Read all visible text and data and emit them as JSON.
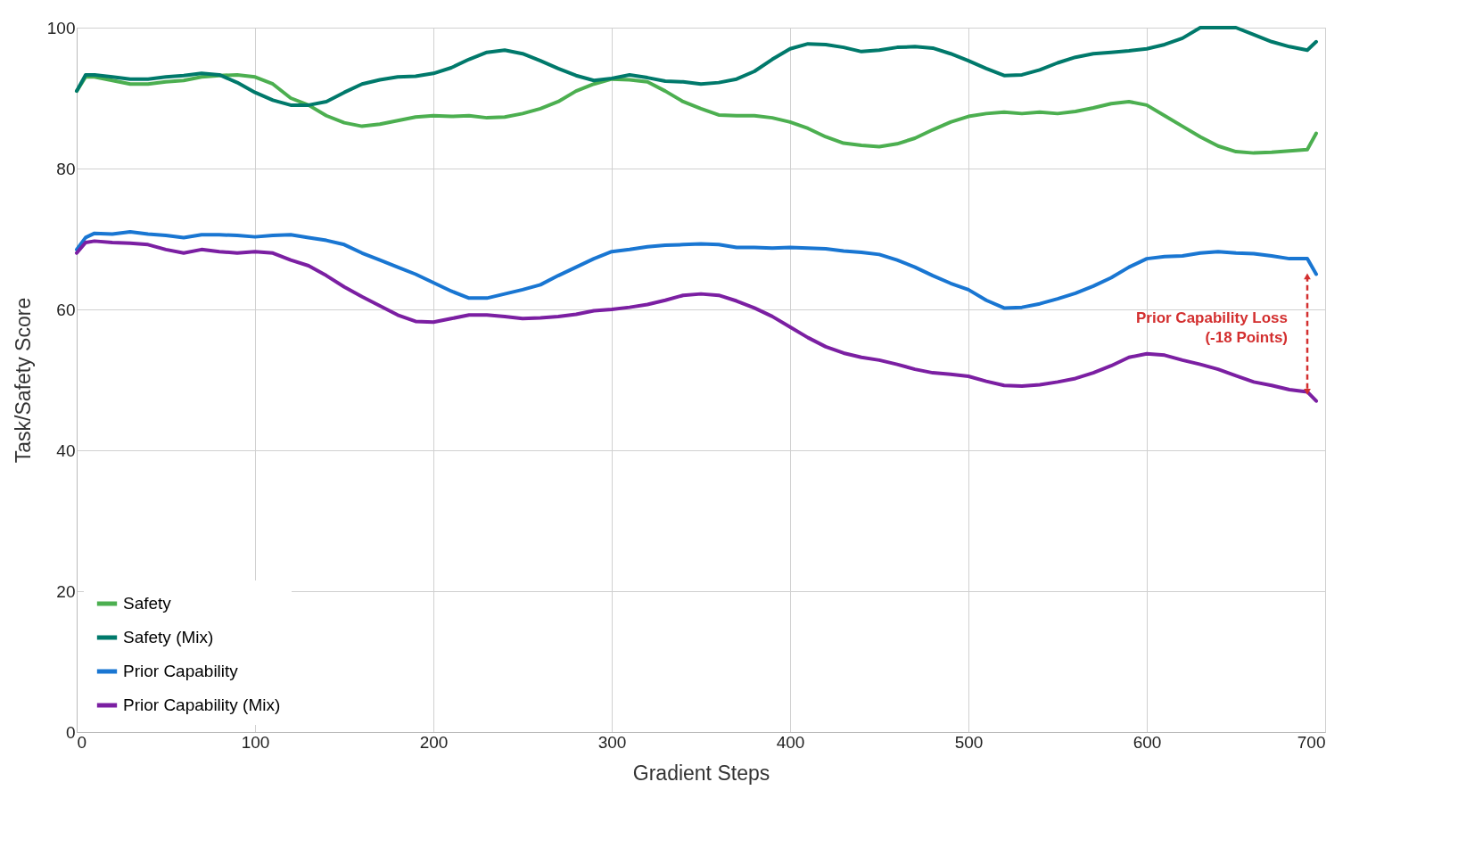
{
  "chart_data": {
    "type": "line",
    "xlabel": "Gradient Steps",
    "ylabel": "Task/Safety Score",
    "x": [
      0,
      5,
      10,
      20,
      30,
      40,
      50,
      60,
      70,
      80,
      90,
      100,
      110,
      120,
      130,
      140,
      150,
      160,
      170,
      180,
      190,
      200,
      210,
      220,
      230,
      240,
      250,
      260,
      270,
      280,
      290,
      300,
      310,
      320,
      330,
      340,
      350,
      360,
      370,
      380,
      390,
      400,
      410,
      420,
      430,
      440,
      450,
      460,
      470,
      480,
      490,
      500,
      510,
      520,
      530,
      540,
      550,
      560,
      570,
      580,
      590,
      600,
      610,
      620,
      630,
      640,
      650,
      660,
      670,
      680,
      690,
      695
    ],
    "series": [
      {
        "name": "Safety",
        "color": "#4caf50",
        "values": [
          91,
          93,
          93,
          92.5,
          92,
          92,
          92.3,
          92.5,
          93,
          93.2,
          93.3,
          93,
          92,
          90,
          89,
          87.5,
          86.5,
          86,
          86.3,
          86.8,
          87.3,
          87.5,
          87.4,
          87.5,
          87.2,
          87.3,
          87.8,
          88.5,
          89.5,
          91,
          92,
          92.7,
          92.6,
          92.3,
          91,
          89.5,
          88.5,
          87.6,
          87.5,
          87.5,
          87.2,
          86.6,
          85.7,
          84.5,
          83.6,
          83.3,
          83.1,
          83.5,
          84.3,
          85.5,
          86.6,
          87.4,
          87.8,
          88,
          87.8,
          88,
          87.8,
          88.1,
          88.6,
          89.2,
          89.5,
          89,
          87.5,
          86,
          84.5,
          83.2,
          82.4,
          82.2,
          82.3,
          82.5,
          82.7,
          85
        ]
      },
      {
        "name": "Safety (Mix)",
        "color": "#00796b",
        "values": [
          91,
          93.3,
          93.3,
          93,
          92.7,
          92.7,
          93,
          93.2,
          93.5,
          93.3,
          92.2,
          90.8,
          89.7,
          89,
          89,
          89.5,
          90.8,
          92,
          92.6,
          93,
          93.1,
          93.5,
          94.3,
          95.5,
          96.5,
          96.8,
          96.3,
          95.3,
          94.2,
          93.2,
          92.5,
          92.8,
          93.3,
          92.9,
          92.4,
          92.3,
          92,
          92.2,
          92.7,
          93.8,
          95.5,
          97,
          97.7,
          97.6,
          97.2,
          96.6,
          96.8,
          97.2,
          97.3,
          97.1,
          96.3,
          95.3,
          94.2,
          93.2,
          93.3,
          94,
          95,
          95.8,
          96.3,
          96.5,
          96.7,
          97,
          97.6,
          98.5,
          100,
          100,
          100,
          99,
          98,
          97.3,
          96.8,
          98
        ]
      },
      {
        "name": "Prior Capability",
        "color": "#1976d2",
        "values": [
          68.5,
          70.2,
          70.8,
          70.7,
          71,
          70.7,
          70.5,
          70.2,
          70.6,
          70.6,
          70.5,
          70.3,
          70.5,
          70.6,
          70.2,
          69.8,
          69.2,
          68,
          67,
          66,
          65,
          63.8,
          62.6,
          61.6,
          61.6,
          62.2,
          62.8,
          63.5,
          64.8,
          66,
          67.2,
          68.2,
          68.5,
          68.9,
          69.1,
          69.2,
          69.3,
          69.2,
          68.8,
          68.8,
          68.7,
          68.8,
          68.7,
          68.6,
          68.3,
          68.1,
          67.8,
          67,
          66,
          64.8,
          63.7,
          62.8,
          61.3,
          60.2,
          60.3,
          60.8,
          61.5,
          62.3,
          63.3,
          64.5,
          66,
          67.2,
          67.5,
          67.6,
          68,
          68.2,
          68,
          67.9,
          67.6,
          67.2,
          67.2,
          65
        ]
      },
      {
        "name": "Prior Capability (Mix)",
        "color": "#7b1fa2",
        "values": [
          68,
          69.5,
          69.7,
          69.5,
          69.4,
          69.2,
          68.5,
          68,
          68.5,
          68.2,
          68,
          68.2,
          68,
          67,
          66.2,
          64.8,
          63.2,
          61.8,
          60.5,
          59.2,
          58.3,
          58.2,
          58.7,
          59.2,
          59.2,
          59,
          58.7,
          58.8,
          59,
          59.3,
          59.8,
          60,
          60.3,
          60.7,
          61.3,
          62,
          62.2,
          62,
          61.2,
          60.2,
          59,
          57.5,
          56,
          54.7,
          53.8,
          53.2,
          52.8,
          52.2,
          51.5,
          51,
          50.8,
          50.5,
          49.8,
          49.2,
          49.1,
          49.3,
          49.7,
          50.2,
          51,
          52,
          53.2,
          53.7,
          53.5,
          52.8,
          52.2,
          51.5,
          50.6,
          49.7,
          49.2,
          48.6,
          48.3,
          47
        ]
      }
    ],
    "xlim": [
      0,
      700
    ],
    "xticks": [
      0,
      100,
      200,
      300,
      400,
      500,
      600,
      700
    ],
    "ylim": [
      0,
      100
    ],
    "yticks": [
      0,
      20,
      40,
      60,
      80,
      100
    ],
    "grid": true,
    "legend": "bottom left",
    "annotations": [
      "Prior Capability Loss\n(-18 Points)"
    ]
  }
}
